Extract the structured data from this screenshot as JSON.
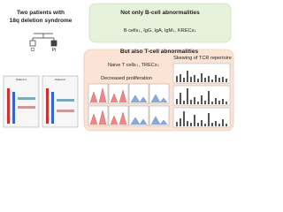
{
  "left": {
    "title_line1": "Two patients with",
    "title_line2": "18q deletion syndrome",
    "pedigree_labels": [
      "Cl",
      "Pt"
    ],
    "plot_labels": [
      "Patient 1",
      "Patient 2"
    ]
  },
  "b_cell": {
    "title": "Not only B-cell abnormalities",
    "text": "B cells↓, IgG, IgA, IgM↓, KRECs↓"
  },
  "t_cell": {
    "title": "But also T-cell abnormalities",
    "naive": "Naive T cells↓, TRECs↓",
    "proliferation": "Decreased proliferation",
    "tcr": "Skewing of TCR repertoire"
  }
}
